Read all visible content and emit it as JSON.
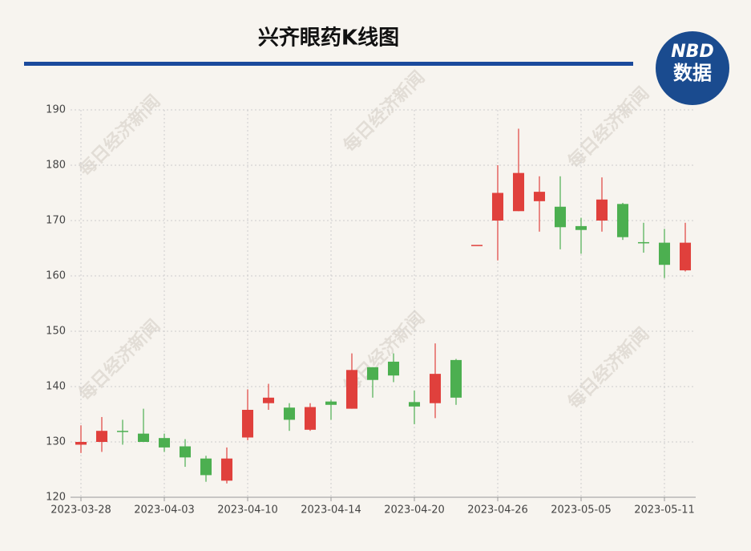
{
  "chart_data": {
    "type": "candlestick",
    "title": "兴齐眼药K线图",
    "logo": {
      "top": "NBD",
      "bottom": "数据"
    },
    "watermark": "每日经济新闻",
    "categories": [
      "2023-03-28",
      null,
      null,
      null,
      "2023-04-03",
      null,
      null,
      null,
      "2023-04-10",
      null,
      null,
      null,
      "2023-04-14",
      null,
      null,
      null,
      "2023-04-20",
      null,
      null,
      null,
      "2023-04-26",
      null,
      null,
      null,
      "2023-05-05",
      null,
      null,
      null,
      "2023-05-11",
      null
    ],
    "series": [
      {
        "up_color": "#e0403c",
        "down_color": "#4caf50",
        "open": [
          129.5,
          130,
          132,
          131.5,
          130.7,
          129.2,
          127,
          123,
          130.8,
          137,
          136.2,
          132.2,
          137.3,
          136,
          143.5,
          144.5,
          137.2,
          137,
          144.8,
          165.6,
          170,
          171.7,
          173.5,
          172.5,
          169,
          170,
          173,
          166.1,
          166,
          161
        ],
        "high": [
          133,
          134.5,
          134,
          136,
          131.5,
          130.5,
          127.5,
          129,
          139.5,
          140.5,
          137,
          137,
          137.6,
          146,
          143.5,
          146,
          139.3,
          147.8,
          145,
          165.6,
          180,
          186.6,
          178,
          178,
          170.5,
          177.8,
          173.2,
          169.6,
          168.5,
          169.6
        ],
        "low": [
          128,
          128.2,
          129.5,
          130,
          128.2,
          125.5,
          122.8,
          122.5,
          130.3,
          135.8,
          132,
          132,
          134,
          136,
          138,
          140.8,
          133.2,
          134.3,
          136.7,
          165.6,
          162.8,
          171.7,
          168,
          164.8,
          164,
          168,
          166.5,
          164.2,
          159.6,
          160.8
        ],
        "close": [
          130,
          132,
          131.8,
          130,
          129,
          127.2,
          124,
          127,
          135.8,
          138,
          134,
          136.3,
          136.7,
          143,
          141.2,
          142,
          136.4,
          142.3,
          138,
          165.6,
          175,
          178.6,
          175.2,
          168.8,
          168.3,
          173.8,
          167,
          166,
          162,
          166
        ]
      }
    ],
    "ylim": [
      120,
      190
    ],
    "yticks": [
      120,
      130,
      140,
      150,
      160,
      170,
      180,
      190
    ],
    "grid": true
  }
}
